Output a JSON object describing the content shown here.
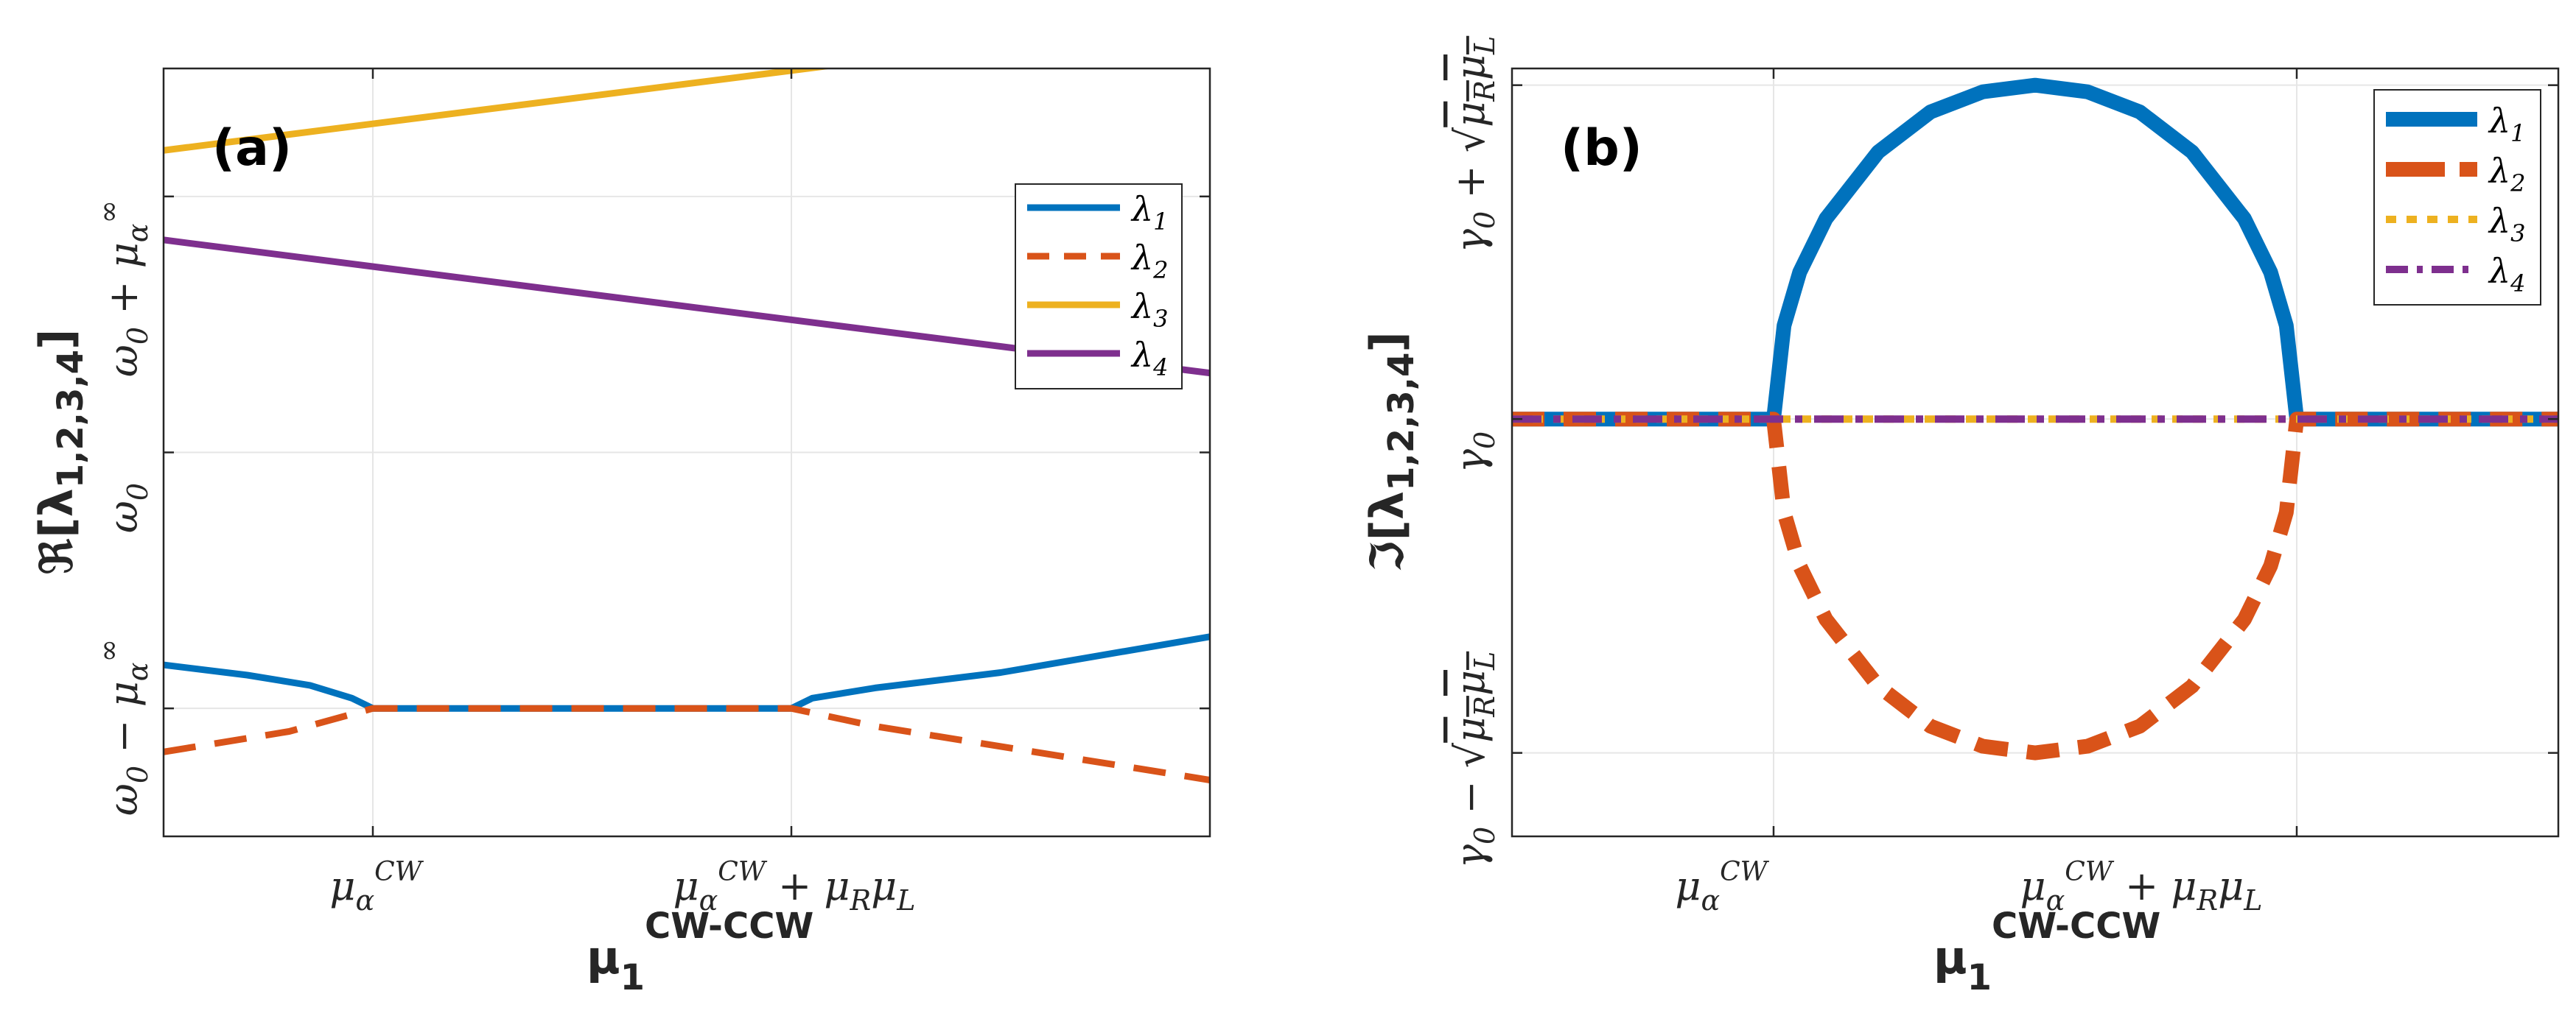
{
  "colors": {
    "blue": "#0072BD",
    "orange": "#D95319",
    "yellow": "#EDB120",
    "purple": "#7E2F8E",
    "grid": "#e6e6e6",
    "axis": "#262626"
  },
  "panel_a": {
    "label": "(a)",
    "ylabel_prefix": "ℜ[λ",
    "ylabel_sub": "1,2,3,4",
    "ylabel_suffix": "]",
    "xlabel_main": "μ",
    "xlabel_sub": "1",
    "xlabel_sup": "CW-CCW",
    "xticks": [
      "μα^CW",
      "μα^CW + μRμL"
    ],
    "yticks": [
      "ω0 − μα^∞",
      "ω0",
      "ω0 + μα^∞"
    ],
    "legend": [
      "λ1",
      "λ2",
      "λ3",
      "λ4"
    ]
  },
  "panel_b": {
    "label": "(b)",
    "ylabel_prefix": "ℑ[λ",
    "ylabel_sub": "1,2,3,4",
    "ylabel_suffix": "]",
    "xlabel_main": "μ",
    "xlabel_sub": "1",
    "xlabel_sup": "CW-CCW",
    "xticks": [
      "μα^CW",
      "μα^CW + μRμL"
    ],
    "yticks": [
      "γ0 − √μRμL",
      "γ0",
      "γ0 + √μRμL"
    ],
    "legend": [
      "λ1",
      "λ2",
      "λ3",
      "λ4"
    ]
  },
  "chart_data": [
    {
      "type": "line",
      "panel": "(a)",
      "xlim": [
        -0.5,
        2
      ],
      "ylim": [
        -1.5,
        1.5
      ],
      "xticks": [
        0,
        1
      ],
      "xtick_labels": [
        "μα^CW",
        "μα^CW + μRμL"
      ],
      "yticks": [
        -1,
        0,
        1
      ],
      "ytick_labels": [
        "ω0 − μα^∞",
        "ω0",
        "ω0 + μα^∞"
      ],
      "grid": true,
      "legend_position": "top-right",
      "series": [
        {
          "name": "λ1",
          "color": "#0072BD",
          "style": "solid",
          "x": [
            -0.5,
            -0.3,
            -0.15,
            -0.05,
            0,
            1,
            1.05,
            1.2,
            1.5,
            2
          ],
          "y": [
            -0.83,
            -0.87,
            -0.91,
            -0.96,
            -1.0,
            -1.0,
            -0.96,
            -0.92,
            -0.86,
            -0.72
          ]
        },
        {
          "name": "λ2",
          "color": "#D95319",
          "style": "dashed",
          "x": [
            -0.5,
            -0.2,
            0,
            1,
            1.2,
            2
          ],
          "y": [
            -1.17,
            -1.09,
            -1.0,
            -1.0,
            -1.07,
            -1.28
          ]
        },
        {
          "name": "λ3",
          "color": "#EDB120",
          "style": "solid",
          "x": [
            -0.5,
            2
          ],
          "y": [
            1.18,
            1.7
          ]
        },
        {
          "name": "λ4",
          "color": "#7E2F8E",
          "style": "solid",
          "x": [
            -0.5,
            2
          ],
          "y": [
            0.83,
            0.31
          ]
        }
      ]
    },
    {
      "type": "line",
      "panel": "(b)",
      "xlim": [
        -0.5,
        1.5
      ],
      "ylim": [
        -1.25,
        1.05
      ],
      "xticks": [
        0,
        1
      ],
      "xtick_labels": [
        "μα^CW",
        "μα^CW + μRμL"
      ],
      "yticks": [
        -1,
        0,
        1
      ],
      "ytick_labels": [
        "γ0 − √μRμL",
        "γ0",
        "γ0 + √μRμL"
      ],
      "grid": true,
      "legend_position": "top-right",
      "series": [
        {
          "name": "λ1",
          "color": "#0072BD",
          "style": "solid",
          "x": [
            -0.5,
            0,
            0,
            0.02,
            0.05,
            0.1,
            0.2,
            0.3,
            0.4,
            0.5,
            0.6,
            0.7,
            0.8,
            0.9,
            0.95,
            0.98,
            1,
            1,
            1.5
          ],
          "y": [
            0,
            0,
            0,
            0.28,
            0.44,
            0.6,
            0.8,
            0.92,
            0.98,
            1.0,
            0.98,
            0.92,
            0.8,
            0.6,
            0.44,
            0.28,
            0,
            0,
            0
          ]
        },
        {
          "name": "λ2",
          "color": "#D95319",
          "style": "dashed",
          "x": [
            -0.5,
            0,
            0,
            0.02,
            0.05,
            0.1,
            0.2,
            0.3,
            0.4,
            0.5,
            0.6,
            0.7,
            0.8,
            0.9,
            0.95,
            0.98,
            1,
            1,
            1.5
          ],
          "y": [
            0,
            0,
            0,
            -0.28,
            -0.44,
            -0.6,
            -0.8,
            -0.92,
            -0.98,
            -1.0,
            -0.98,
            -0.92,
            -0.8,
            -0.6,
            -0.44,
            -0.28,
            0,
            0,
            0
          ]
        },
        {
          "name": "λ3",
          "color": "#EDB120",
          "style": "dotted",
          "x": [
            -0.5,
            1.5
          ],
          "y": [
            0,
            0
          ]
        },
        {
          "name": "λ4",
          "color": "#7E2F8E",
          "style": "dashdot",
          "x": [
            -0.5,
            1.5
          ],
          "y": [
            0,
            0
          ]
        }
      ]
    }
  ]
}
